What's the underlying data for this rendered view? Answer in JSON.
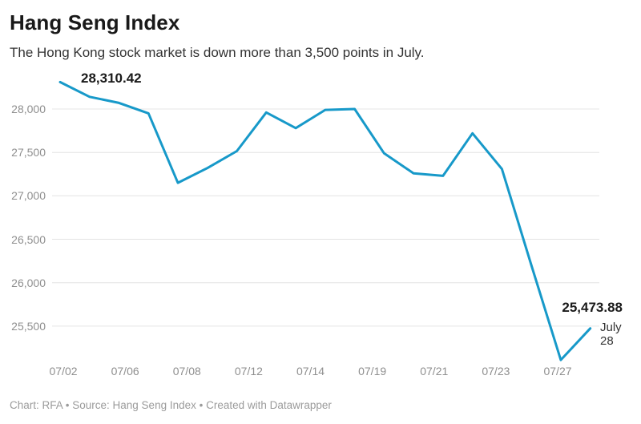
{
  "header": {
    "title": "Hang Seng Index",
    "subtitle": "The Hong Kong stock market is down more than 3,500 points in July."
  },
  "footer": {
    "text": "Chart: RFA • Source: Hang Seng Index • Created with Datawrapper"
  },
  "chart_data": {
    "type": "line",
    "title": "Hang Seng Index",
    "subtitle": "The Hong Kong stock market is down more than 3,500 points in July.",
    "xlabel": "",
    "ylabel": "",
    "x": [
      "07/02",
      "07/05",
      "07/06",
      "07/07",
      "07/08",
      "07/09",
      "07/12",
      "07/13",
      "07/14",
      "07/15",
      "07/16",
      "07/19",
      "07/20",
      "07/21",
      "07/22",
      "07/23",
      "07/26",
      "07/27",
      "07/28"
    ],
    "series": [
      {
        "name": "Hang Seng Index",
        "values": [
          28310.42,
          28140,
          28070,
          27950,
          27150,
          27320,
          27515,
          27960,
          27780,
          27990,
          28000,
          27490,
          27260,
          27230,
          27720,
          27310,
          26200,
          25110,
          25473.88
        ]
      }
    ],
    "x_tick_labels": [
      "07/02",
      "07/06",
      "07/08",
      "07/12",
      "07/14",
      "07/19",
      "07/21",
      "07/23",
      "07/27"
    ],
    "y_ticks": [
      25500,
      26000,
      26500,
      27000,
      27500,
      28000
    ],
    "y_tick_labels": [
      "25,500",
      "26,000",
      "26,500",
      "27,000",
      "27,500",
      "28,000"
    ],
    "ylim": [
      24800,
      28470
    ],
    "grid": "horizontal",
    "legend": "none",
    "line_color": "#1799c9",
    "grid_color": "#e4e4e4",
    "annotations": {
      "first_value": "28,310.42",
      "last_value": "25,473.88",
      "last_date_line1": "July",
      "last_date_line2": "28"
    }
  }
}
